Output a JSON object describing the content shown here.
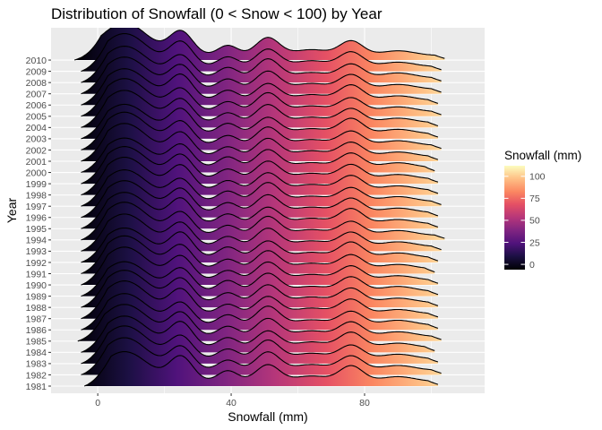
{
  "chart_data": {
    "type": "ridgeline",
    "title": "Distribution of Snowfall (0 < Snow < 100) by Year",
    "xlabel": "Snowfall (mm)",
    "ylabel": "Year",
    "xlim": [
      -14,
      116
    ],
    "x_ticks": [
      0,
      40,
      80
    ],
    "x_tick_labels": [
      "0",
      "40",
      "80"
    ],
    "years": [
      "1981",
      "1982",
      "1983",
      "1984",
      "1985",
      "1986",
      "1987",
      "1988",
      "1989",
      "1990",
      "1991",
      "1992",
      "1993",
      "1994",
      "1995",
      "1996",
      "1997",
      "1998",
      "1999",
      "2000",
      "2001",
      "2002",
      "2003",
      "2004",
      "2005",
      "2006",
      "2007",
      "2008",
      "2009",
      "2010"
    ],
    "density_peaks_mm": [
      {
        "x": 8,
        "height": 1.0,
        "width": 7
      },
      {
        "x": 25,
        "height": 0.72,
        "width": 3.5
      },
      {
        "x": 39,
        "height": 0.32,
        "width": 3
      },
      {
        "x": 51,
        "height": 0.56,
        "width": 3.5
      },
      {
        "x": 64,
        "height": 0.18,
        "width": 5
      },
      {
        "x": 76,
        "height": 0.45,
        "width": 3.5
      },
      {
        "x": 90,
        "height": 0.15,
        "width": 5
      }
    ],
    "per_year_range": [
      {
        "year": "1981",
        "min": -4,
        "max": 102
      },
      {
        "year": "1982",
        "min": -5,
        "max": 103
      },
      {
        "year": "1983",
        "min": -5,
        "max": 102
      },
      {
        "year": "1984",
        "min": -5,
        "max": 101
      },
      {
        "year": "1985",
        "min": -6,
        "max": 103
      },
      {
        "year": "1986",
        "min": -5,
        "max": 102
      },
      {
        "year": "1987",
        "min": -5,
        "max": 102
      },
      {
        "year": "1988",
        "min": -5,
        "max": 102
      },
      {
        "year": "1989",
        "min": -5,
        "max": 102
      },
      {
        "year": "1990",
        "min": -5,
        "max": 102
      },
      {
        "year": "1991",
        "min": -5,
        "max": 101
      },
      {
        "year": "1992",
        "min": -5,
        "max": 102
      },
      {
        "year": "1993",
        "min": -5,
        "max": 103
      },
      {
        "year": "1994",
        "min": -5,
        "max": 104
      },
      {
        "year": "1995",
        "min": -5,
        "max": 102
      },
      {
        "year": "1996",
        "min": -5,
        "max": 102
      },
      {
        "year": "1997",
        "min": -5,
        "max": 103
      },
      {
        "year": "1998",
        "min": -5,
        "max": 102
      },
      {
        "year": "1999",
        "min": -5,
        "max": 102
      },
      {
        "year": "2000",
        "min": -5,
        "max": 101
      },
      {
        "year": "2001",
        "min": -5,
        "max": 102
      },
      {
        "year": "2002",
        "min": -5,
        "max": 103
      },
      {
        "year": "2003",
        "min": -5,
        "max": 102
      },
      {
        "year": "2004",
        "min": -5,
        "max": 102
      },
      {
        "year": "2005",
        "min": -5,
        "max": 103
      },
      {
        "year": "2006",
        "min": -5,
        "max": 102
      },
      {
        "year": "2007",
        "min": -5,
        "max": 103
      },
      {
        "year": "2008",
        "min": -5,
        "max": 103
      },
      {
        "year": "2009",
        "min": -5,
        "max": 103
      },
      {
        "year": "2010",
        "min": -7,
        "max": 104
      }
    ],
    "fill_mapping": "x",
    "colorscale": "magma",
    "legend": {
      "title": "Snowfall (mm)",
      "position": "right",
      "ticks": [
        0,
        25,
        50,
        75,
        100
      ],
      "tick_labels": [
        "0",
        "25",
        "50",
        "75",
        "100"
      ],
      "range": [
        -6,
        112
      ]
    },
    "grid": true,
    "colors": {
      "panel_background": "#ebebeb",
      "grid": "#ffffff",
      "ridge_outline": "#000000"
    }
  }
}
